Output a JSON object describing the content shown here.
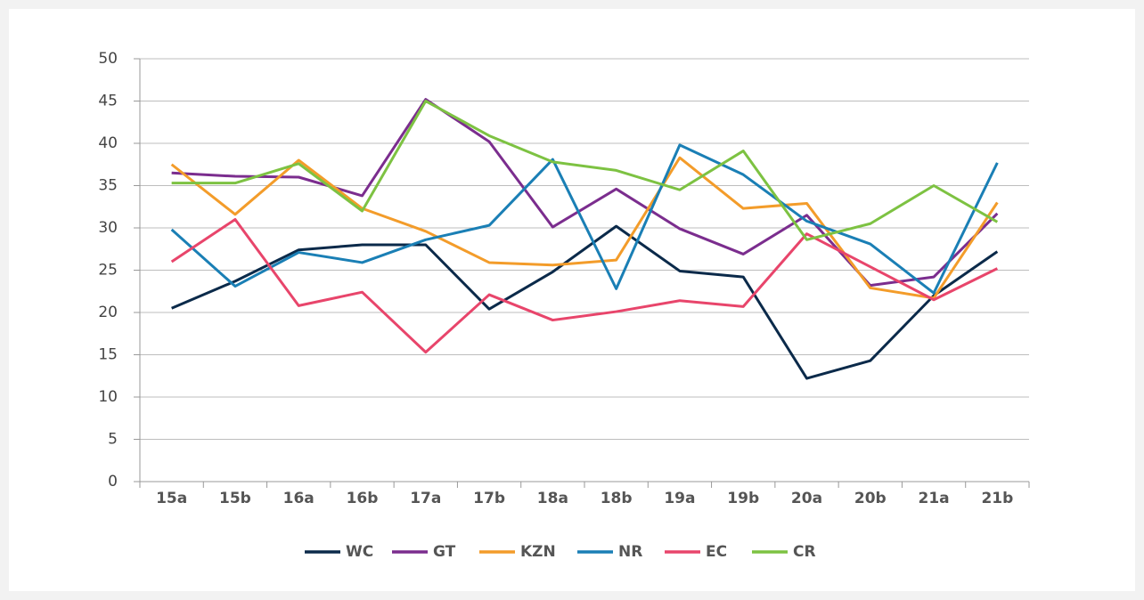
{
  "chart_data": {
    "type": "line",
    "categories": [
      "15a",
      "15b",
      "16a",
      "16b",
      "17a",
      "17b",
      "18a",
      "18b",
      "19a",
      "19b",
      "20a",
      "20b",
      "21a",
      "21b"
    ],
    "ylim": [
      0,
      50
    ],
    "yticks": [
      0,
      5,
      10,
      15,
      20,
      25,
      30,
      35,
      40,
      45,
      50
    ],
    "grid": true,
    "legend": "bottom",
    "series": [
      {
        "name": "WC",
        "color": "#0b2a4a",
        "values": [
          20.5,
          23.7,
          27.4,
          28,
          28,
          20.4,
          24.8,
          30.2,
          24.9,
          24.2,
          12.2,
          14.3,
          22,
          27.2
        ]
      },
      {
        "name": "GT",
        "color": "#7b2d8e",
        "values": [
          36.5,
          36.1,
          36,
          33.8,
          45.2,
          40.2,
          30.1,
          34.6,
          29.9,
          26.9,
          31.5,
          23.2,
          24.2,
          31.7
        ]
      },
      {
        "name": "KZN",
        "color": "#f39c2a",
        "values": [
          37.5,
          31.6,
          38,
          32.3,
          29.6,
          25.9,
          25.6,
          26.2,
          38.3,
          32.3,
          32.9,
          22.9,
          21.7,
          33
        ]
      },
      {
        "name": "NR",
        "color": "#1a7fb5",
        "values": [
          29.8,
          23.1,
          27.1,
          25.9,
          28.6,
          30.3,
          38.1,
          22.8,
          39.8,
          36.3,
          30.8,
          28.1,
          22.3,
          37.7
        ]
      },
      {
        "name": "EC",
        "color": "#e8456b",
        "values": [
          26,
          31,
          20.8,
          22.4,
          15.3,
          22.1,
          19.1,
          20.1,
          21.4,
          20.7,
          29.3,
          25.4,
          21.5,
          25.2
        ]
      },
      {
        "name": "CR",
        "color": "#7dc242",
        "values": [
          35.3,
          35.3,
          37.6,
          32,
          45,
          40.9,
          37.8,
          36.8,
          34.5,
          39.1,
          28.6,
          30.5,
          35,
          30.7
        ]
      }
    ]
  }
}
